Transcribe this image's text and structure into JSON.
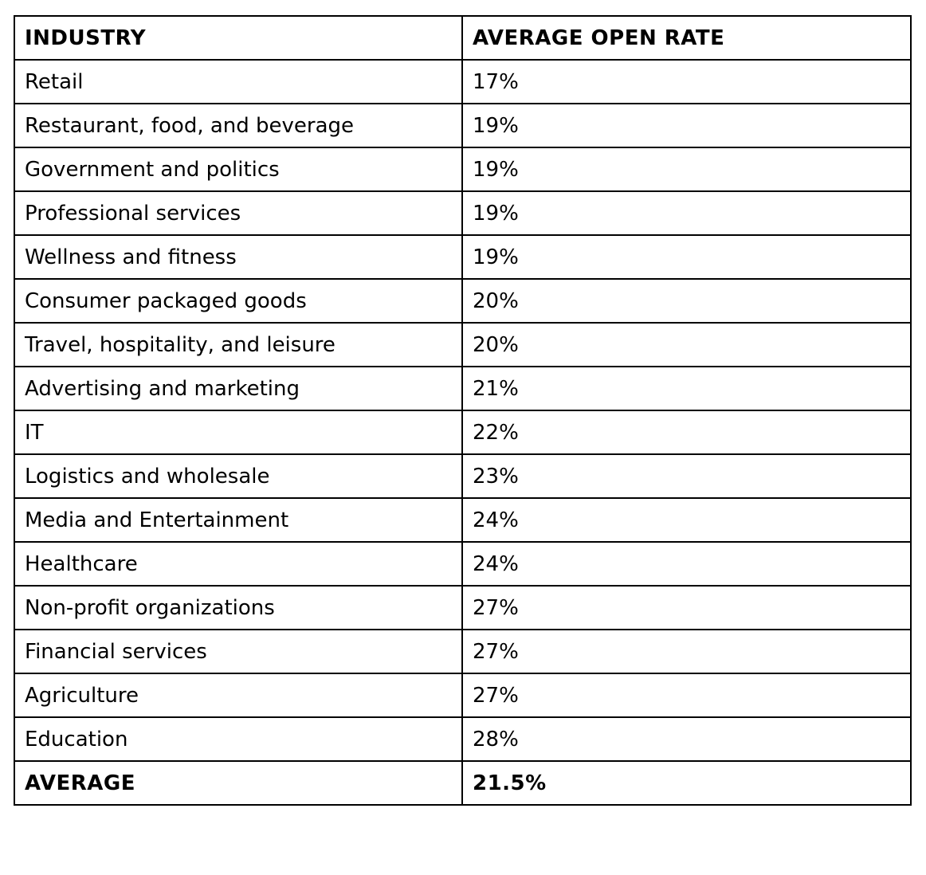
{
  "table": {
    "headers": [
      "INDUSTRY",
      "AVERAGE OPEN RATE"
    ],
    "rows": [
      [
        "Retail",
        "17%"
      ],
      [
        "Restaurant, food, and beverage",
        "19%"
      ],
      [
        "Government and politics",
        "19%"
      ],
      [
        "Professional services",
        "19%"
      ],
      [
        "Wellness and fitness",
        "19%"
      ],
      [
        "Consumer packaged goods",
        "20%"
      ],
      [
        "Travel, hospitality, and leisure",
        "20%"
      ],
      [
        "Advertising and marketing",
        "21%"
      ],
      [
        "IT",
        "22%"
      ],
      [
        "Logistics and wholesale",
        "23%"
      ],
      [
        "Media and Entertainment",
        "24%"
      ],
      [
        "Healthcare",
        "24%"
      ],
      [
        "Non-profit organizations",
        "27%"
      ],
      [
        "Financial services",
        "27%"
      ],
      [
        "Agriculture",
        "27%"
      ],
      [
        "Education",
        "28%"
      ]
    ],
    "footer": [
      "AVERAGE",
      "21.5%"
    ]
  }
}
